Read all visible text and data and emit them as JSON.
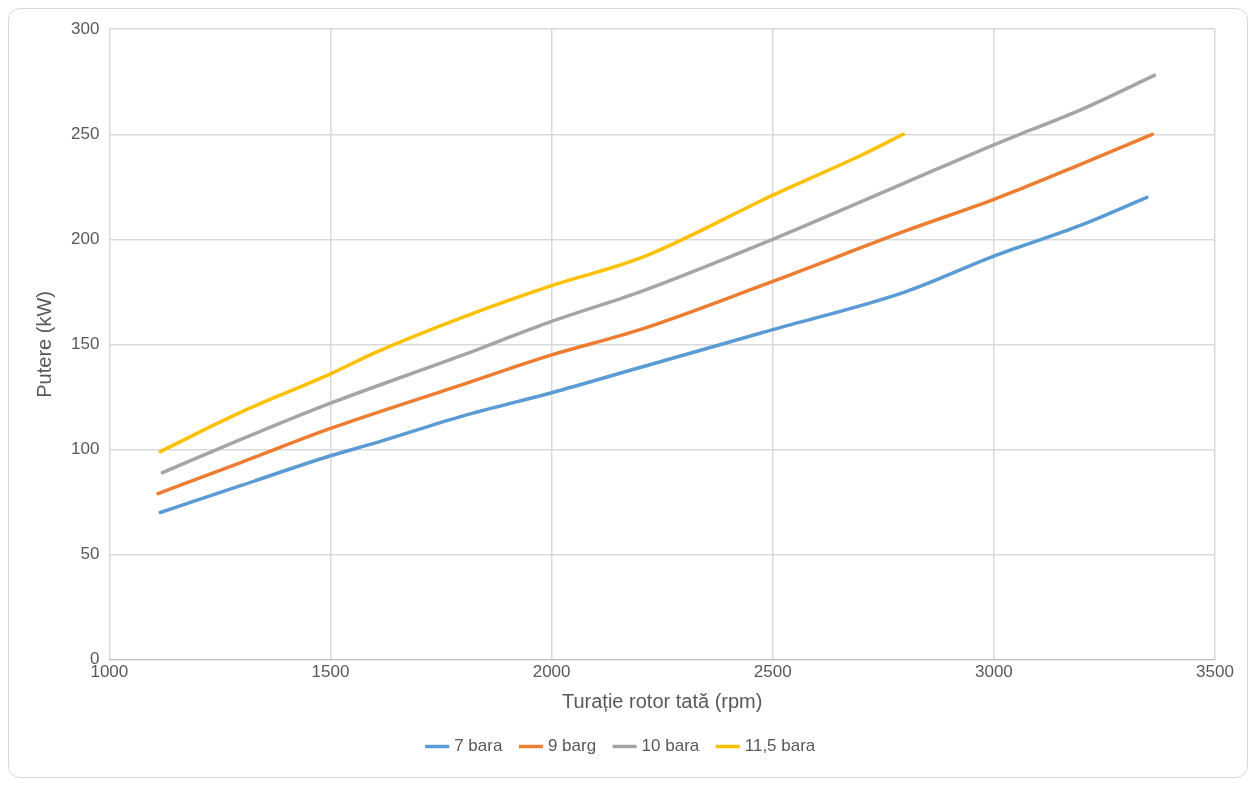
{
  "chart_data": {
    "type": "line",
    "xlabel": "Turație rotor tată (rpm)",
    "ylabel": "Putere (kW)",
    "xlim": [
      1000,
      3500
    ],
    "xticks": [
      1000,
      1500,
      2000,
      2500,
      3000,
      3500
    ],
    "ylim": [
      0,
      300
    ],
    "yticks": [
      0,
      50,
      100,
      150,
      200,
      250,
      300
    ],
    "grid": true,
    "legend": "bottom",
    "marker": "none",
    "line_style": "solid",
    "series": [
      {
        "name": "7 bara",
        "color": "#5b9bd5",
        "x": [
          1115,
          1300,
          1500,
          1600,
          1800,
          2000,
          2200,
          2500,
          2800,
          3000,
          3200,
          3346
        ],
        "values": [
          70,
          83,
          97,
          103,
          116,
          127,
          139,
          157,
          175,
          192,
          207,
          220
        ]
      },
      {
        "name": "9 barg",
        "color": "#ed7d31",
        "x": [
          1110,
          1300,
          1500,
          1800,
          2000,
          2200,
          2500,
          2800,
          3000,
          3200,
          3358
        ],
        "values": [
          79,
          94,
          110,
          131,
          145,
          157,
          180,
          204,
          219,
          236,
          250
        ]
      },
      {
        "name": "10 bara",
        "color": "#a5a5a5",
        "x": [
          1120,
          1300,
          1500,
          1800,
          2000,
          2200,
          2500,
          2800,
          3000,
          3200,
          3363
        ],
        "values": [
          89,
          105,
          122,
          145,
          161,
          175,
          200,
          227,
          245,
          262,
          278
        ]
      },
      {
        "name": "11,5 bara",
        "color": "#ffc000",
        "x": [
          1115,
          1300,
          1500,
          1600,
          1800,
          2000,
          2200,
          2500,
          2700,
          2795
        ],
        "values": [
          99,
          118,
          136,
          146,
          163,
          178,
          191,
          221,
          240,
          250
        ]
      }
    ]
  }
}
